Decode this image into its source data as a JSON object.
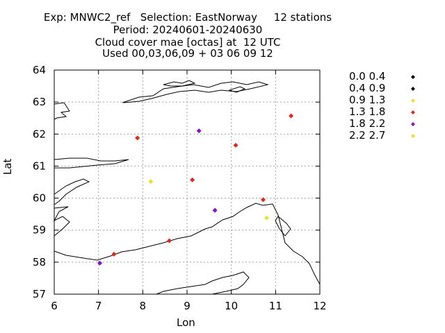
{
  "title": {
    "line1": "Exp: MNWC2_ref   Selection: EastNorway     12 stations",
    "line2": "Period: 20240601-20240630",
    "line3": "Cloud cover mae [octas] at  12 UTC",
    "line4": "Used 00,03,06,09 + 03 06 09 12"
  },
  "chart_data": {
    "type": "scatter",
    "title": "Cloud cover mae [octas] at  12 UTC",
    "xlabel": "Lon",
    "ylabel": "Lat",
    "xlim": [
      6,
      12
    ],
    "ylim": [
      57,
      64
    ],
    "xticks": [
      6,
      7,
      8,
      9,
      10,
      11,
      12
    ],
    "yticks": [
      57,
      58,
      59,
      60,
      61,
      62,
      63,
      64
    ],
    "grid": true,
    "legend_placement": "right",
    "legend": [
      {
        "label": "0.0 0.4",
        "color": "#000000"
      },
      {
        "label": "0.4 0.9",
        "color": "#000000"
      },
      {
        "label": "0.9 1.3",
        "color": "#f0e02c"
      },
      {
        "label": "1.3 1.8",
        "color": "#e0281c"
      },
      {
        "label": "1.8 2.2",
        "color": "#8a10c8"
      },
      {
        "label": "2.2 2.7",
        "color": "#f0e02c"
      }
    ],
    "points": [
      {
        "lon": 7.88,
        "lat": 61.88,
        "bin": 3
      },
      {
        "lon": 9.27,
        "lat": 62.1,
        "bin": 4
      },
      {
        "lon": 10.1,
        "lat": 61.65,
        "bin": 3
      },
      {
        "lon": 11.35,
        "lat": 62.57,
        "bin": 3
      },
      {
        "lon": 8.18,
        "lat": 60.52,
        "bin": 2
      },
      {
        "lon": 9.12,
        "lat": 60.57,
        "bin": 3
      },
      {
        "lon": 9.63,
        "lat": 59.62,
        "bin": 4
      },
      {
        "lon": 10.72,
        "lat": 59.95,
        "bin": 3
      },
      {
        "lon": 10.8,
        "lat": 59.38,
        "bin": 2
      },
      {
        "lon": 8.6,
        "lat": 58.67,
        "bin": 3
      },
      {
        "lon": 7.35,
        "lat": 58.25,
        "bin": 3
      },
      {
        "lon": 7.03,
        "lat": 57.97,
        "bin": 4
      }
    ]
  }
}
